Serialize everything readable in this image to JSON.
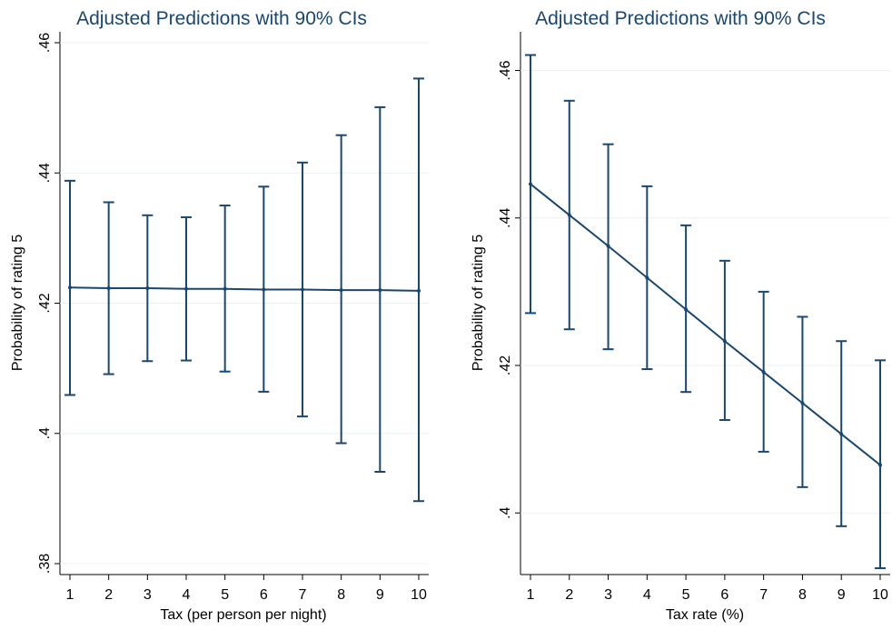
{
  "chart_data": [
    {
      "type": "line",
      "title": "Adjusted Predictions with 90% CIs",
      "xlabel": "Tax (per person per night)",
      "ylabel": "Probability of rating 5",
      "x": [
        1,
        2,
        3,
        4,
        5,
        6,
        7,
        8,
        9,
        10
      ],
      "xticks": [
        "1",
        "2",
        "3",
        "4",
        "5",
        "6",
        "7",
        "8",
        "9",
        "10"
      ],
      "yticks": [
        ".38",
        ".4",
        ".42",
        ".44",
        ".46"
      ],
      "ytick_values": [
        0.38,
        0.4,
        0.42,
        0.44,
        0.46
      ],
      "ylim": [
        0.38,
        0.46
      ],
      "xlim": [
        1,
        10
      ],
      "grid": true,
      "series": [
        {
          "color": "#1a476f",
          "values": [
            0.4224,
            0.4223,
            0.4223,
            0.4222,
            0.4222,
            0.4221,
            0.4221,
            0.422,
            0.422,
            0.4219
          ],
          "ci_lower": [
            0.4059,
            0.4091,
            0.4111,
            0.4112,
            0.4095,
            0.4064,
            0.4026,
            0.3985,
            0.3941,
            0.3896
          ],
          "ci_upper": [
            0.4388,
            0.4355,
            0.4335,
            0.4332,
            0.435,
            0.4379,
            0.4416,
            0.4458,
            0.4501,
            0.4545
          ]
        }
      ]
    },
    {
      "type": "line",
      "title": "Adjusted Predictions with 90% CIs",
      "xlabel": "Tax rate (%)",
      "ylabel": "Probability of rating 5",
      "x": [
        1,
        2,
        3,
        4,
        5,
        6,
        7,
        8,
        9,
        10
      ],
      "xticks": [
        "1",
        "2",
        "3",
        "4",
        "5",
        "6",
        "7",
        "8",
        "9",
        "10"
      ],
      "yticks": [
        ".4",
        ".42",
        ".44",
        ".46"
      ],
      "ytick_values": [
        0.4,
        0.42,
        0.44,
        0.46
      ],
      "ylim": [
        0.393,
        0.465
      ],
      "xlim": [
        1,
        10
      ],
      "grid": true,
      "series": [
        {
          "color": "#1a476f",
          "values": [
            0.4446,
            0.4404,
            0.4362,
            0.4319,
            0.4276,
            0.4233,
            0.4191,
            0.4149,
            0.4107,
            0.4065
          ],
          "ci_lower": [
            0.4271,
            0.4249,
            0.4222,
            0.4195,
            0.4164,
            0.4126,
            0.4083,
            0.4035,
            0.3982,
            0.3925
          ],
          "ci_upper": [
            0.4621,
            0.4559,
            0.45,
            0.4443,
            0.439,
            0.4342,
            0.43,
            0.4266,
            0.4233,
            0.4207
          ]
        }
      ]
    }
  ]
}
